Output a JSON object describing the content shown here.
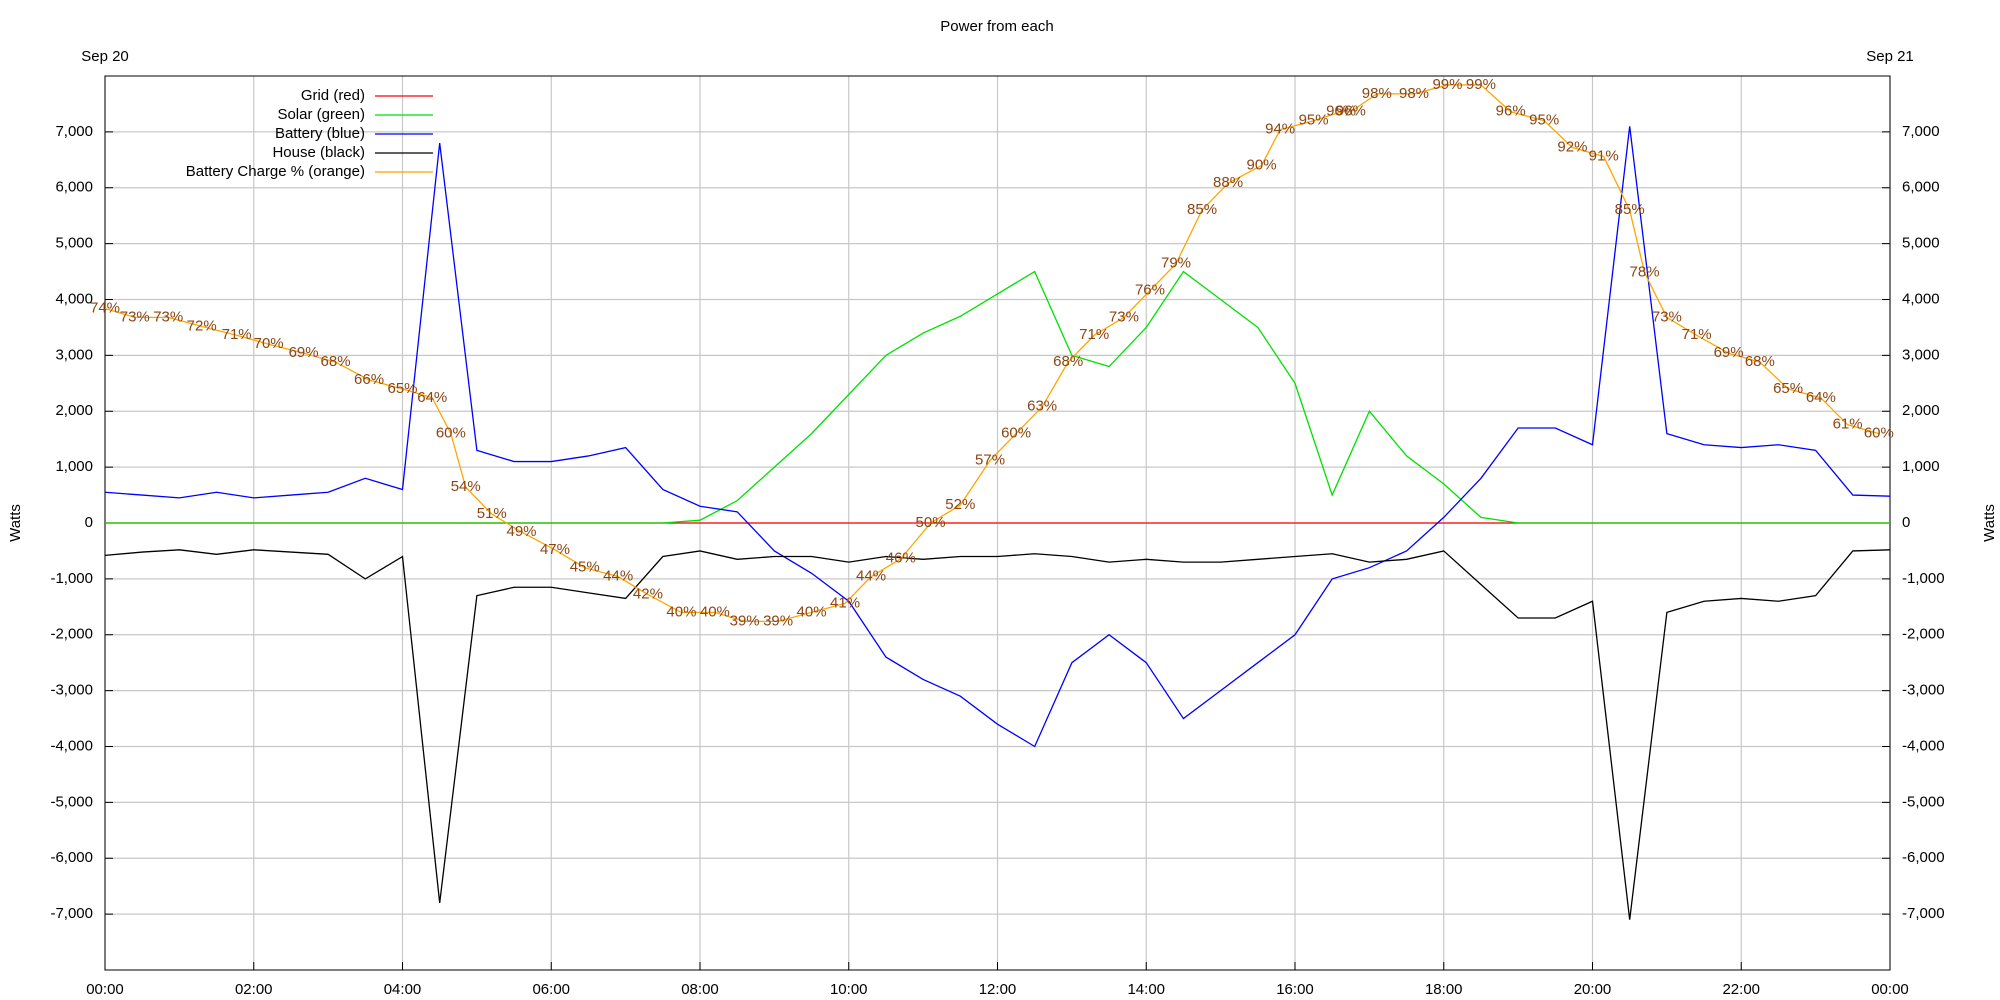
{
  "chart_data": {
    "type": "line",
    "title": "Power from each",
    "date_start": "Sep 20",
    "date_end": "Sep 21",
    "ylabel": "Watts",
    "grid": true,
    "legend": "upper left",
    "xlim": [
      0,
      24
    ],
    "xticks": [
      {
        "value": 0,
        "label": "00:00"
      },
      {
        "value": 2,
        "label": "02:00"
      },
      {
        "value": 4,
        "label": "04:00"
      },
      {
        "value": 6,
        "label": "06:00"
      },
      {
        "value": 8,
        "label": "08:00"
      },
      {
        "value": 10,
        "label": "10:00"
      },
      {
        "value": 12,
        "label": "12:00"
      },
      {
        "value": 14,
        "label": "14:00"
      },
      {
        "value": 16,
        "label": "16:00"
      },
      {
        "value": 18,
        "label": "18:00"
      },
      {
        "value": 20,
        "label": "20:00"
      },
      {
        "value": 22,
        "label": "22:00"
      },
      {
        "value": 24,
        "label": "00:00"
      }
    ],
    "ylim": [
      -8000,
      8000
    ],
    "yticks": [
      {
        "value": -7000,
        "label": "-7,000"
      },
      {
        "value": -6000,
        "label": "-6,000"
      },
      {
        "value": -5000,
        "label": "-5,000"
      },
      {
        "value": -4000,
        "label": "-4,000"
      },
      {
        "value": -3000,
        "label": "-3,000"
      },
      {
        "value": -2000,
        "label": "-2,000"
      },
      {
        "value": -1000,
        "label": "-1,000"
      },
      0,
      {
        "value": 1000,
        "label": "1,000"
      },
      {
        "value": 2000,
        "label": "2,000"
      },
      {
        "value": 3000,
        "label": "3,000"
      },
      {
        "value": 4000,
        "label": "4,000"
      },
      {
        "value": 5000,
        "label": "5,000"
      },
      {
        "value": 6000,
        "label": "6,000"
      },
      {
        "value": 7000,
        "label": "7,000"
      }
    ],
    "y2lim": [
      0,
      100
    ],
    "x": [
      0,
      0.5,
      1,
      1.5,
      2,
      2.5,
      3,
      3.5,
      4,
      4.5,
      5,
      5.5,
      6,
      6.5,
      7,
      7.5,
      8,
      8.5,
      9,
      9.5,
      10,
      10.5,
      11,
      11.5,
      12,
      12.5,
      13,
      13.5,
      14,
      14.5,
      15,
      15.5,
      16,
      16.5,
      17,
      17.5,
      18,
      18.5,
      19,
      19.5,
      20,
      20.5,
      21,
      21.5,
      22,
      22.5,
      23,
      23.5,
      24
    ],
    "series": [
      {
        "name": "Grid (red)",
        "color": "#ff0000",
        "values": [
          0,
          0,
          0,
          0,
          0,
          0,
          0,
          0,
          0,
          0,
          0,
          0,
          0,
          0,
          0,
          0,
          0,
          0,
          0,
          0,
          0,
          0,
          0,
          0,
          0,
          0,
          0,
          0,
          0,
          0,
          0,
          0,
          0,
          0,
          0,
          0,
          0,
          0,
          0,
          0,
          0,
          0,
          0,
          0,
          0,
          0,
          0,
          0,
          0
        ]
      },
      {
        "name": "Solar (green)",
        "color": "#00e000",
        "values": [
          0,
          0,
          0,
          0,
          0,
          0,
          0,
          0,
          0,
          0,
          0,
          0,
          0,
          0,
          0,
          0,
          50,
          400,
          1000,
          1600,
          2300,
          3000,
          3400,
          3700,
          4100,
          4500,
          3000,
          2800,
          3500,
          4500,
          4000,
          3500,
          2500,
          500,
          2000,
          1200,
          700,
          100,
          0,
          0,
          0,
          0,
          0,
          0,
          0,
          0,
          0,
          0,
          0
        ]
      },
      {
        "name": "Battery (blue)",
        "color": "#0000ff",
        "values": [
          550,
          500,
          450,
          550,
          450,
          500,
          550,
          800,
          600,
          6800,
          1300,
          1100,
          1100,
          1200,
          1350,
          600,
          300,
          200,
          -500,
          -900,
          -1400,
          -2400,
          -2800,
          -3100,
          -3600,
          -4000,
          -2500,
          -2000,
          -2500,
          -3500,
          -3000,
          -2500,
          -2000,
          -1000,
          -800,
          -500,
          100,
          800,
          1700,
          1700,
          1400,
          7100,
          1600,
          1400,
          1350,
          1400,
          1300,
          500,
          480
        ]
      },
      {
        "name": "House (black)",
        "color": "#000000",
        "values": [
          -580,
          -520,
          -480,
          -560,
          -480,
          -520,
          -560,
          -1000,
          -600,
          -6800,
          -1300,
          -1150,
          -1150,
          -1250,
          -1350,
          -600,
          -500,
          -650,
          -600,
          -600,
          -700,
          -600,
          -650,
          -600,
          -600,
          -550,
          -600,
          -700,
          -650,
          -700,
          -700,
          -650,
          -600,
          -550,
          -700,
          -650,
          -500,
          -1100,
          -1700,
          -1700,
          -1400,
          -7100,
          -1600,
          -1400,
          -1350,
          -1400,
          -1300,
          -500,
          -480
        ]
      },
      {
        "name": "Battery Charge % (orange)",
        "color": "#ffa500",
        "label_color": "#8b4513",
        "axis": "y2",
        "x": [
          0,
          0.4,
          0.85,
          1.3,
          1.77,
          2.2,
          2.67,
          3.1,
          3.55,
          4.0,
          4.4,
          4.65,
          4.85,
          5.2,
          5.6,
          6.05,
          6.45,
          6.9,
          7.3,
          7.75,
          8.2,
          8.6,
          9.05,
          9.5,
          9.95,
          10.3,
          10.7,
          11.1,
          11.5,
          11.9,
          12.25,
          12.6,
          12.95,
          13.3,
          13.7,
          14.05,
          14.4,
          14.75,
          15.1,
          15.55,
          15.8,
          16.25,
          16.62,
          16.75,
          17.1,
          17.6,
          18.05,
          18.5,
          18.9,
          19.35,
          19.73,
          20.15,
          20.5,
          20.7,
          21.0,
          21.4,
          21.83,
          22.25,
          22.63,
          23.07,
          23.43,
          23.85
        ],
        "values": [
          74,
          73,
          73,
          72,
          71,
          70,
          69,
          68,
          66,
          65,
          64,
          60,
          54,
          51,
          49,
          47,
          45,
          44,
          42,
          40,
          40,
          39,
          39,
          40,
          41,
          44,
          46,
          50,
          52,
          57,
          60,
          63,
          68,
          71,
          73,
          76,
          79,
          85,
          88,
          90,
          94,
          95,
          96,
          96,
          98,
          98,
          99,
          99,
          96,
          95,
          92,
          91,
          85,
          78,
          73,
          71,
          69,
          68,
          65,
          64,
          61,
          60
        ],
        "value_labels": [
          "74%",
          "73%",
          "73%",
          "72%",
          "71%",
          "70%",
          "69%",
          "68%",
          "66%",
          "65%",
          "64%",
          "60%",
          "54%",
          "51%",
          "49%",
          "47%",
          "45%",
          "44%",
          "42%",
          "40%",
          "40%",
          "39%",
          "39%",
          "40%",
          "41%",
          "44%",
          "46%",
          "50%",
          "52%",
          "57%",
          "60%",
          "63%",
          "68%",
          "71%",
          "73%",
          "76%",
          "79%",
          "85%",
          "88%",
          "90%",
          "94%",
          "95%",
          "96%",
          "96%",
          "98%",
          "98%",
          "99%",
          "99%",
          "96%",
          "95%",
          "92%",
          "91%",
          "85%",
          "78%",
          "73%",
          "71%",
          "69%",
          "68%",
          "65%",
          "64%",
          "61%",
          "60%"
        ]
      }
    ]
  }
}
